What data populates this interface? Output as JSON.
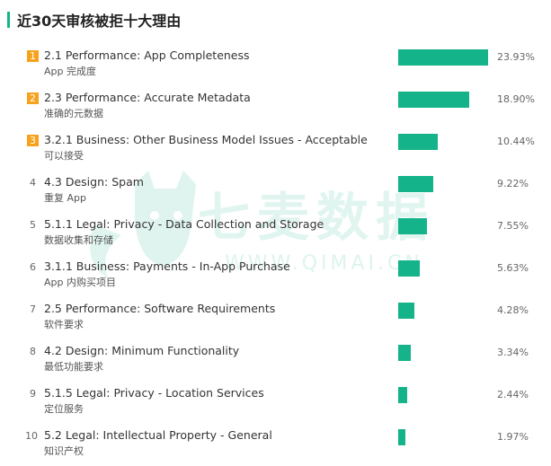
{
  "title": "近30天审核被拒十大理由",
  "watermark": {
    "cn": "七麦数据",
    "en": "WWW.QIMAI.CN"
  },
  "colors": {
    "accent": "#14b389",
    "rank_badge": "#f6a21c"
  },
  "chart_data": {
    "type": "bar",
    "orientation": "horizontal",
    "xlim": [
      0,
      23.93
    ],
    "categories": [
      "2.1 Performance: App Completeness",
      "2.3 Performance: Accurate Metadata",
      "3.2.1 Business: Other Business Model Issues - Acceptable",
      "4.3 Design: Spam",
      "5.1.1 Legal: Privacy - Data Collection and Storage",
      "3.1.1 Business: Payments - In-App Purchase",
      "2.5 Performance: Software Requirements",
      "4.2 Design: Minimum Functionality",
      "5.1.5 Legal: Privacy - Location Services",
      "5.2 Legal: Intellectual Property - General"
    ],
    "values": [
      23.93,
      18.9,
      10.44,
      9.22,
      7.55,
      5.63,
      4.28,
      3.34,
      2.44,
      1.97
    ]
  },
  "rows": [
    {
      "rank": "1",
      "label": "2.1 Performance: App Completeness",
      "sublabel": "App 完成度",
      "value": 23.93,
      "pct": "23.93%"
    },
    {
      "rank": "2",
      "label": "2.3 Performance: Accurate Metadata",
      "sublabel": "准确的元数据",
      "value": 18.9,
      "pct": "18.90%"
    },
    {
      "rank": "3",
      "label": "3.2.1 Business: Other Business Model Issues - Acceptable",
      "sublabel": "可以接受",
      "value": 10.44,
      "pct": "10.44%"
    },
    {
      "rank": "4",
      "label": "4.3 Design: Spam",
      "sublabel": "重复 App",
      "value": 9.22,
      "pct": "9.22%"
    },
    {
      "rank": "5",
      "label": "5.1.1 Legal: Privacy - Data Collection and Storage",
      "sublabel": "数据收集和存储",
      "value": 7.55,
      "pct": "7.55%"
    },
    {
      "rank": "6",
      "label": "3.1.1 Business: Payments - In-App Purchase",
      "sublabel": "App 内购买项目",
      "value": 5.63,
      "pct": "5.63%"
    },
    {
      "rank": "7",
      "label": "2.5 Performance: Software Requirements",
      "sublabel": "软件要求",
      "value": 4.28,
      "pct": "4.28%"
    },
    {
      "rank": "8",
      "label": "4.2 Design: Minimum Functionality",
      "sublabel": "最低功能要求",
      "value": 3.34,
      "pct": "3.34%"
    },
    {
      "rank": "9",
      "label": "5.1.5 Legal: Privacy - Location Services",
      "sublabel": "定位服务",
      "value": 2.44,
      "pct": "2.44%"
    },
    {
      "rank": "10",
      "label": "5.2 Legal: Intellectual Property - General",
      "sublabel": "知识产权",
      "value": 1.97,
      "pct": "1.97%"
    }
  ]
}
